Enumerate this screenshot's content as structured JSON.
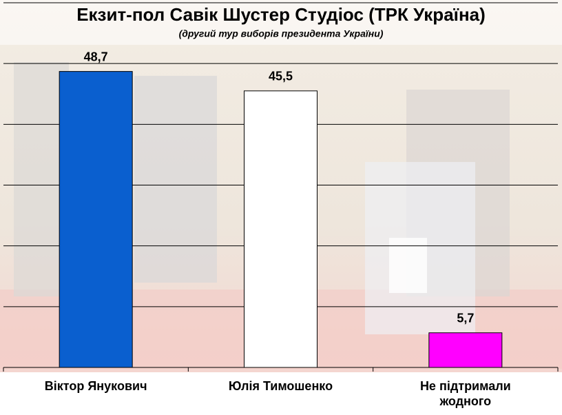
{
  "chart_data": {
    "type": "bar",
    "title": "Екзит-пол Савік Шустер Студіос (ТРК Україна)",
    "subtitle": "(другий тур виборів президента України)",
    "categories": [
      "Віктор Янукович",
      "Юлія Тимошенко",
      "Не підтримали жодного"
    ],
    "values": [
      48.7,
      45.5,
      5.7
    ],
    "value_labels": [
      "48,7",
      "45,5",
      "5,7"
    ],
    "colors": [
      "#0a5fcf",
      "#ffffff",
      "#ff00ff"
    ],
    "ylim": [
      0,
      60
    ],
    "yticks": [
      0,
      10,
      20,
      30,
      40,
      50,
      60
    ],
    "grid": true
  }
}
